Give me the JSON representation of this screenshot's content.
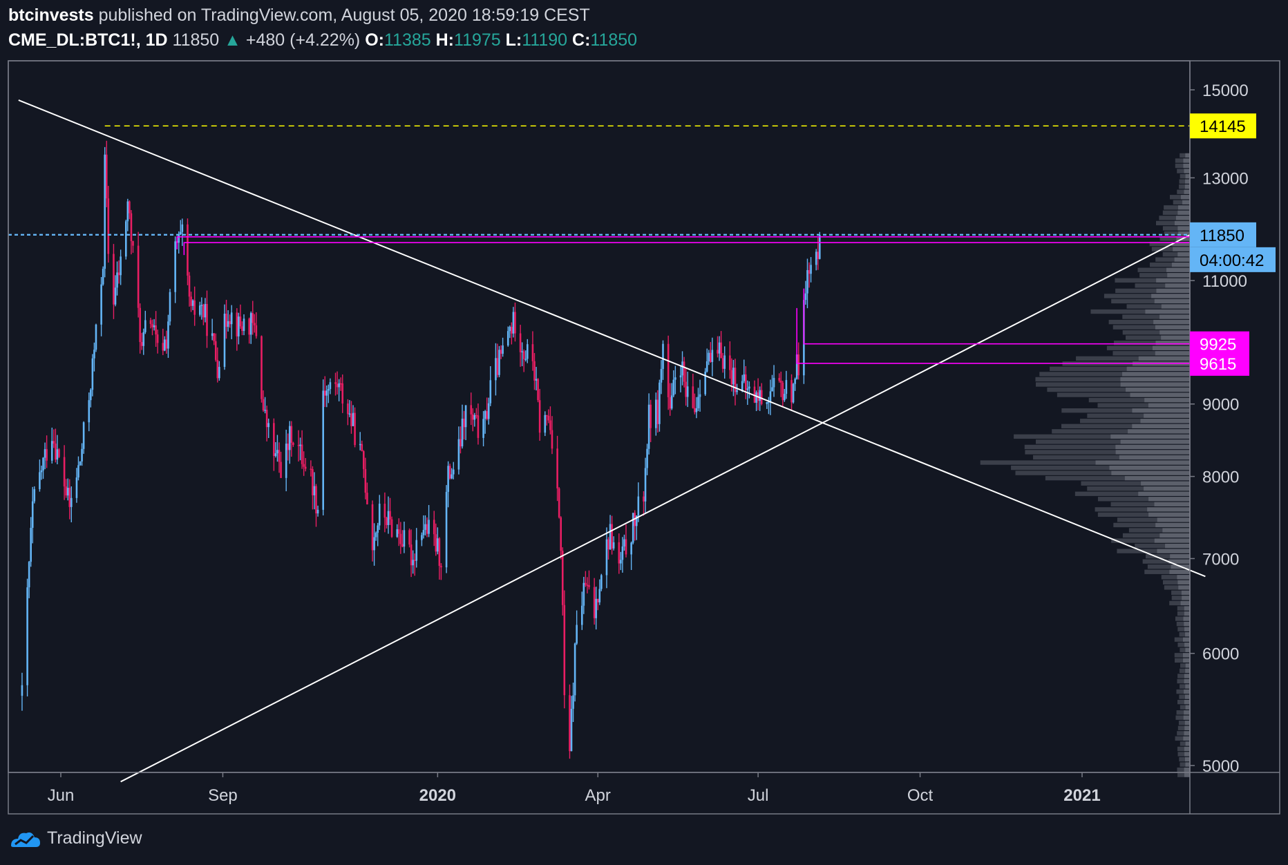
{
  "header": {
    "author": "btcinvests",
    "published": "published on TradingView.com, August 05, 2020 18:59:19 CEST",
    "symbol": "CME_DL:BTC1!, 1D",
    "last": "11850",
    "arrow": "▲",
    "change": "+480 (+4.22%)",
    "o_label": "O:",
    "o_value": "11385",
    "h_label": "H:",
    "h_value": "11975",
    "l_label": "L:",
    "l_value": "11190",
    "c_label": "C:",
    "c_value": "11850"
  },
  "footer": {
    "brand": "TradingView"
  },
  "colors": {
    "background": "#131722",
    "up": "#64b5f6",
    "down": "#e91e63",
    "magenta": "#ff00ff",
    "yellow": "#ffff00",
    "price_line": "#64b5f6",
    "trendline": "#ffffff",
    "volume_profile": "#5d606b"
  },
  "chart_data": {
    "type": "candlestick",
    "symbol": "CME_DL:BTC1!",
    "interval": "1D",
    "ylim": [
      4870,
      15250
    ],
    "y_ticks": [
      "15000",
      "13000",
      "11000",
      "9000",
      "8000",
      "7000",
      "6000",
      "5000"
    ],
    "x_ticks": [
      {
        "label": "Jun",
        "date": "2019-06-01",
        "bold": false
      },
      {
        "label": "Sep",
        "date": "2019-09-01",
        "bold": false
      },
      {
        "label": "2020",
        "date": "2020-01-01",
        "bold": true
      },
      {
        "label": "Apr",
        "date": "2020-04-01",
        "bold": false
      },
      {
        "label": "Jul",
        "date": "2020-07-01",
        "bold": false
      },
      {
        "label": "Oct",
        "date": "2020-10-01",
        "bold": false
      },
      {
        "label": "2021",
        "date": "2021-01-01",
        "bold": true
      }
    ],
    "price_path": [
      [
        "2019-05-10",
        5600
      ],
      [
        "2019-05-16",
        7600
      ],
      [
        "2019-05-21",
        8100
      ],
      [
        "2019-05-27",
        8600
      ],
      [
        "2019-06-03",
        7900
      ],
      [
        "2019-06-06",
        7600
      ],
      [
        "2019-06-12",
        8200
      ],
      [
        "2019-06-17",
        9100
      ],
      [
        "2019-06-22",
        10300
      ],
      [
        "2019-06-25",
        11400
      ],
      [
        "2019-06-26",
        13300
      ],
      [
        "2019-06-28",
        11500
      ],
      [
        "2019-07-01",
        10700
      ],
      [
        "2019-07-05",
        11300
      ],
      [
        "2019-07-09",
        12500
      ],
      [
        "2019-07-13",
        11100
      ],
      [
        "2019-07-17",
        9800
      ],
      [
        "2019-07-21",
        10500
      ],
      [
        "2019-07-26",
        9800
      ],
      [
        "2019-07-31",
        10000
      ],
      [
        "2019-08-05",
        11600
      ],
      [
        "2019-08-09",
        11800
      ],
      [
        "2019-08-14",
        10400
      ],
      [
        "2019-08-19",
        10600
      ],
      [
        "2019-08-24",
        10200
      ],
      [
        "2019-08-29",
        9600
      ],
      [
        "2019-09-04",
        10500
      ],
      [
        "2019-09-10",
        10200
      ],
      [
        "2019-09-15",
        10300
      ],
      [
        "2019-09-20",
        10100
      ],
      [
        "2019-09-24",
        8900
      ],
      [
        "2019-09-30",
        8300
      ],
      [
        "2019-10-05",
        8100
      ],
      [
        "2019-10-10",
        8600
      ],
      [
        "2019-10-15",
        8300
      ],
      [
        "2019-10-20",
        8100
      ],
      [
        "2019-10-25",
        7600
      ],
      [
        "2019-10-26",
        9300
      ],
      [
        "2019-10-30",
        9200
      ],
      [
        "2019-11-05",
        9300
      ],
      [
        "2019-11-10",
        9000
      ],
      [
        "2019-11-15",
        8600
      ],
      [
        "2019-11-20",
        8100
      ],
      [
        "2019-11-25",
        7200
      ],
      [
        "2019-11-30",
        7600
      ],
      [
        "2019-12-05",
        7400
      ],
      [
        "2019-12-10",
        7300
      ],
      [
        "2019-12-15",
        7100
      ],
      [
        "2019-12-18",
        7000
      ],
      [
        "2019-12-22",
        7400
      ],
      [
        "2019-12-28",
        7300
      ],
      [
        "2020-01-03",
        7000
      ],
      [
        "2020-01-07",
        8000
      ],
      [
        "2020-01-12",
        8200
      ],
      [
        "2020-01-17",
        8900
      ],
      [
        "2020-01-22",
        8700
      ],
      [
        "2020-01-27",
        8600
      ],
      [
        "2020-02-01",
        9400
      ],
      [
        "2020-02-06",
        9700
      ],
      [
        "2020-02-10",
        10100
      ],
      [
        "2020-02-14",
        10300
      ],
      [
        "2020-02-19",
        9800
      ],
      [
        "2020-02-24",
        9700
      ],
      [
        "2020-02-28",
        8700
      ],
      [
        "2020-03-04",
        8800
      ],
      [
        "2020-03-09",
        8000
      ],
      [
        "2020-03-12",
        6500
      ],
      [
        "2020-03-13",
        5500
      ],
      [
        "2020-03-16",
        5100
      ],
      [
        "2020-03-20",
        6300
      ],
      [
        "2020-03-25",
        6700
      ],
      [
        "2020-03-30",
        6400
      ],
      [
        "2020-04-03",
        6900
      ],
      [
        "2020-04-08",
        7300
      ],
      [
        "2020-04-13",
        6900
      ],
      [
        "2020-04-18",
        7200
      ],
      [
        "2020-04-23",
        7500
      ],
      [
        "2020-04-27",
        7800
      ],
      [
        "2020-04-30",
        8800
      ],
      [
        "2020-05-05",
        8900
      ],
      [
        "2020-05-08",
        9900
      ],
      [
        "2020-05-12",
        8800
      ],
      [
        "2020-05-17",
        9800
      ],
      [
        "2020-05-21",
        9100
      ],
      [
        "2020-05-26",
        8900
      ],
      [
        "2020-06-01",
        9700
      ],
      [
        "2020-06-06",
        9600
      ],
      [
        "2020-06-10",
        9800
      ],
      [
        "2020-06-15",
        9500
      ],
      [
        "2020-06-20",
        9300
      ],
      [
        "2020-06-25",
        9200
      ],
      [
        "2020-06-30",
        9100
      ],
      [
        "2020-07-05",
        9100
      ],
      [
        "2020-07-10",
        9200
      ],
      [
        "2020-07-15",
        9200
      ],
      [
        "2020-07-20",
        9200
      ],
      [
        "2020-07-22",
        9500
      ],
      [
        "2020-07-24",
        9600
      ],
      [
        "2020-07-27",
        10900
      ],
      [
        "2020-07-30",
        11100
      ],
      [
        "2020-08-03",
        11400
      ],
      [
        "2020-08-05",
        11850
      ]
    ],
    "price_labels": [
      {
        "label": "14145",
        "price": 14145,
        "style": "yellow"
      },
      {
        "label": "11850",
        "price": 11850,
        "style": "blue"
      },
      {
        "label": "04:00:42",
        "price": 11380,
        "style": "blue-countdown"
      },
      {
        "label": "9925",
        "price": 9925,
        "style": "magenta"
      },
      {
        "label": "9615",
        "price": 9615,
        "style": "magenta"
      }
    ],
    "drawings": {
      "descending_trendline": [
        [
          "2019-05-08",
          14750
        ],
        [
          "2021-03-12",
          6800
        ]
      ],
      "ascending_trendline": [
        [
          "2019-07-05",
          4870
        ],
        [
          "2021-03-12",
          12000
        ]
      ],
      "resistance_line": {
        "price": 14145,
        "from": "2019-06-26",
        "color": "yellow",
        "dashed": true
      },
      "magenta_top_lines": [
        {
          "price": 11810,
          "from": "2019-08-06"
        },
        {
          "price": 11700,
          "from": "2019-08-10"
        }
      ],
      "magenta_support_lines": [
        {
          "price": 9925,
          "from": "2020-07-27"
        },
        {
          "price": 9615,
          "from": "2020-07-23"
        }
      ],
      "last_price_line": {
        "price": 11850,
        "dashed": true
      }
    },
    "volume_profile_note": "horizontal volume-at-price histogram on right side",
    "volume_profile_range": [
      4900,
      13500
    ]
  }
}
